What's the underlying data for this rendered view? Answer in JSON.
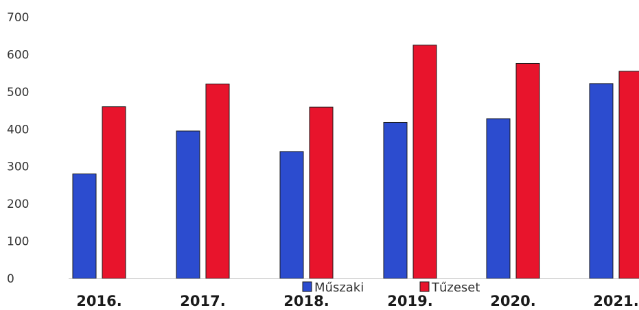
{
  "chart_data": {
    "type": "bar",
    "categories": [
      "2016.",
      "2017.",
      "2018.",
      "2019.",
      "2020.",
      "2021."
    ],
    "series": [
      {
        "name": "Műszaki",
        "color": "#2c4ccf",
        "values": [
          280,
          395,
          340,
          418,
          428,
          522
        ]
      },
      {
        "name": "Tűzeset",
        "color": "#e8142c",
        "values": [
          460,
          521,
          459,
          625,
          576,
          555
        ]
      }
    ],
    "ylim": [
      0,
      700
    ],
    "yticks": [
      "0",
      "100",
      "200",
      "300",
      "400",
      "500",
      "600",
      "700"
    ],
    "grid": false,
    "legend": "bottom-center",
    "title": "",
    "xlabel": "",
    "ylabel": ""
  }
}
